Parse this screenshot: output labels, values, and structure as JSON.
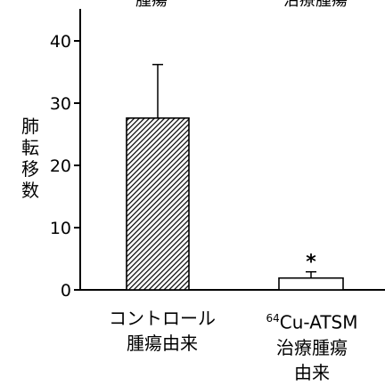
{
  "chart_data": {
    "type": "bar",
    "ylabel": "肺転移数",
    "ylim": [
      0,
      45
    ],
    "yticks": [
      0,
      10,
      20,
      30,
      40
    ],
    "header_text": [
      "腫瘍",
      "治療腫瘍"
    ],
    "categories": [
      {
        "lines": [
          "コントロール",
          "腫瘍由来"
        ]
      },
      {
        "sup": "64",
        "lines": [
          "Cu-ATSM",
          "治療腫瘍",
          "由来"
        ]
      }
    ],
    "values": [
      27.6,
      1.9
    ],
    "error_upper": [
      36.2,
      2.9
    ],
    "annotations": [
      {
        "category_index": 1,
        "text": "*"
      }
    ],
    "bar_styles": [
      "hatched",
      "white"
    ]
  }
}
